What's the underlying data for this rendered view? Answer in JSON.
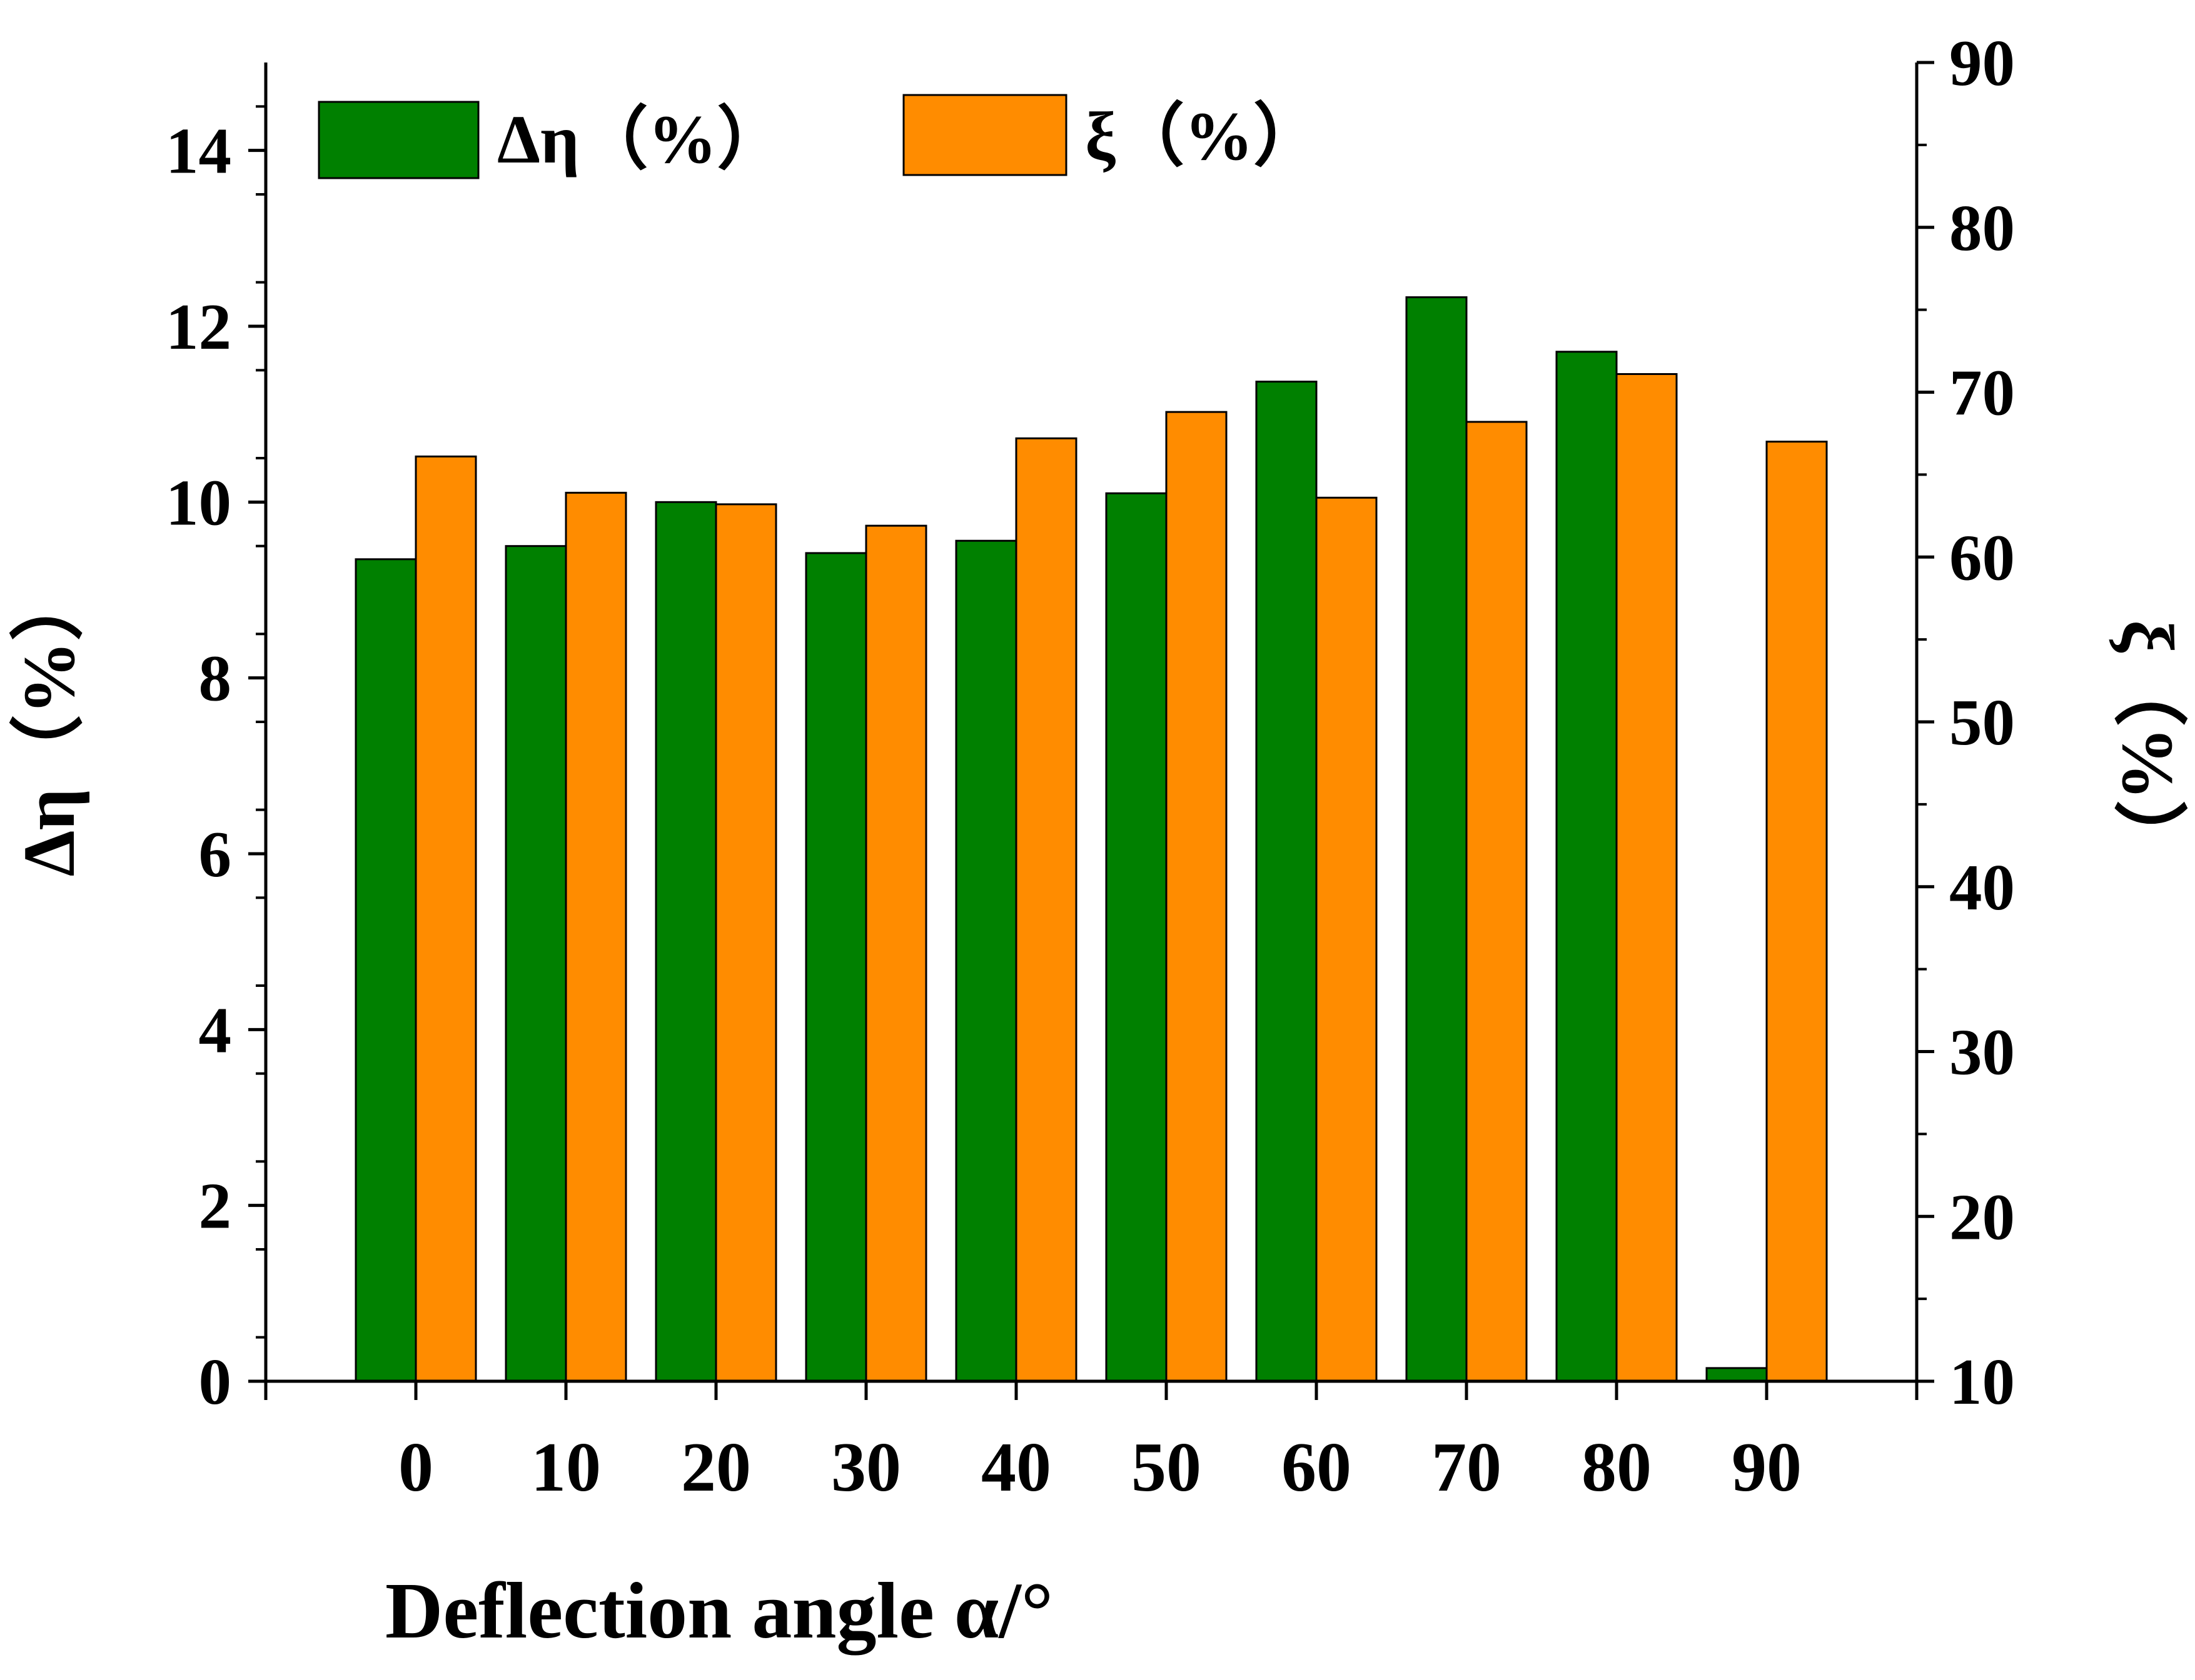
{
  "chart_data": {
    "type": "bar",
    "xlabel": "Deflection angle α/°",
    "ylabel_left": "Δη（%）",
    "ylabel_right": "ξ（%）",
    "categories": [
      "0",
      "10",
      "20",
      "30",
      "40",
      "50",
      "60",
      "70",
      "80",
      "90"
    ],
    "ylim_left": [
      0,
      15
    ],
    "ylim_right": [
      10,
      90
    ],
    "yticks_left": [
      "0",
      "2",
      "4",
      "6",
      "8",
      "10",
      "12",
      "14"
    ],
    "yticks_right": [
      "10",
      "20",
      "30",
      "40",
      "50",
      "60",
      "70",
      "80",
      "90"
    ],
    "series": [
      {
        "name": "Δη（%）",
        "axis": "left",
        "color": "#008000",
        "values": [
          9.35,
          9.5,
          10.0,
          9.42,
          9.56,
          10.1,
          11.37,
          12.33,
          11.71,
          0.15
        ]
      },
      {
        "name": "ξ（%）",
        "axis": "right",
        "color": "#FF8C00",
        "values": [
          66.1,
          63.9,
          63.2,
          61.9,
          67.2,
          68.8,
          63.6,
          68.2,
          71.1,
          67.0
        ]
      }
    ],
    "legend": {
      "position": "top-left",
      "entries": [
        "Δη（%）",
        "ξ（%）"
      ]
    }
  }
}
